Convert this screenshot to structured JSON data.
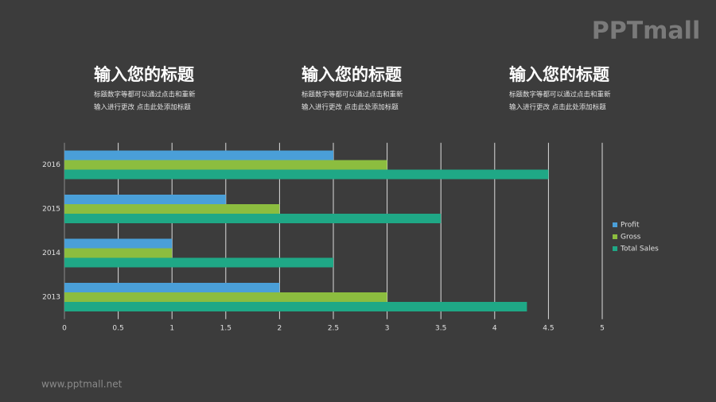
{
  "logo": "PPTmall",
  "columns": [
    {
      "title": "输入您的标题",
      "lines": [
        "标题数字等都可以通过点击和重新",
        "输入进行更改 点击此处添加标题"
      ]
    },
    {
      "title": "输入您的标题",
      "lines": [
        "标题数字等都可以通过点击和重新",
        "输入进行更改 点击此处添加标题"
      ]
    },
    {
      "title": "输入您的标题",
      "lines": [
        "标题数字等都可以通过点击和重新",
        "输入进行更改 点击此处添加标题"
      ]
    }
  ],
  "footer": "www.pptmall.net",
  "chart_data": {
    "type": "bar",
    "orientation": "horizontal",
    "categories": [
      "2013",
      "2014",
      "2015",
      "2016"
    ],
    "series": [
      {
        "name": "Profit",
        "color": "#4a9fd8",
        "values": [
          2,
          1,
          1.5,
          2.5
        ]
      },
      {
        "name": "Gross",
        "color": "#8cbd3f",
        "values": [
          3,
          1,
          2,
          3
        ]
      },
      {
        "name": "Total Sales",
        "color": "#1fa886",
        "values": [
          4.3,
          2.5,
          3.5,
          4.5
        ]
      }
    ],
    "xlim": [
      0,
      5
    ],
    "xticks": [
      0,
      0.5,
      1,
      1.5,
      2,
      2.5,
      3,
      3.5,
      4,
      4.5,
      5
    ],
    "grid": true,
    "legend": "right"
  }
}
